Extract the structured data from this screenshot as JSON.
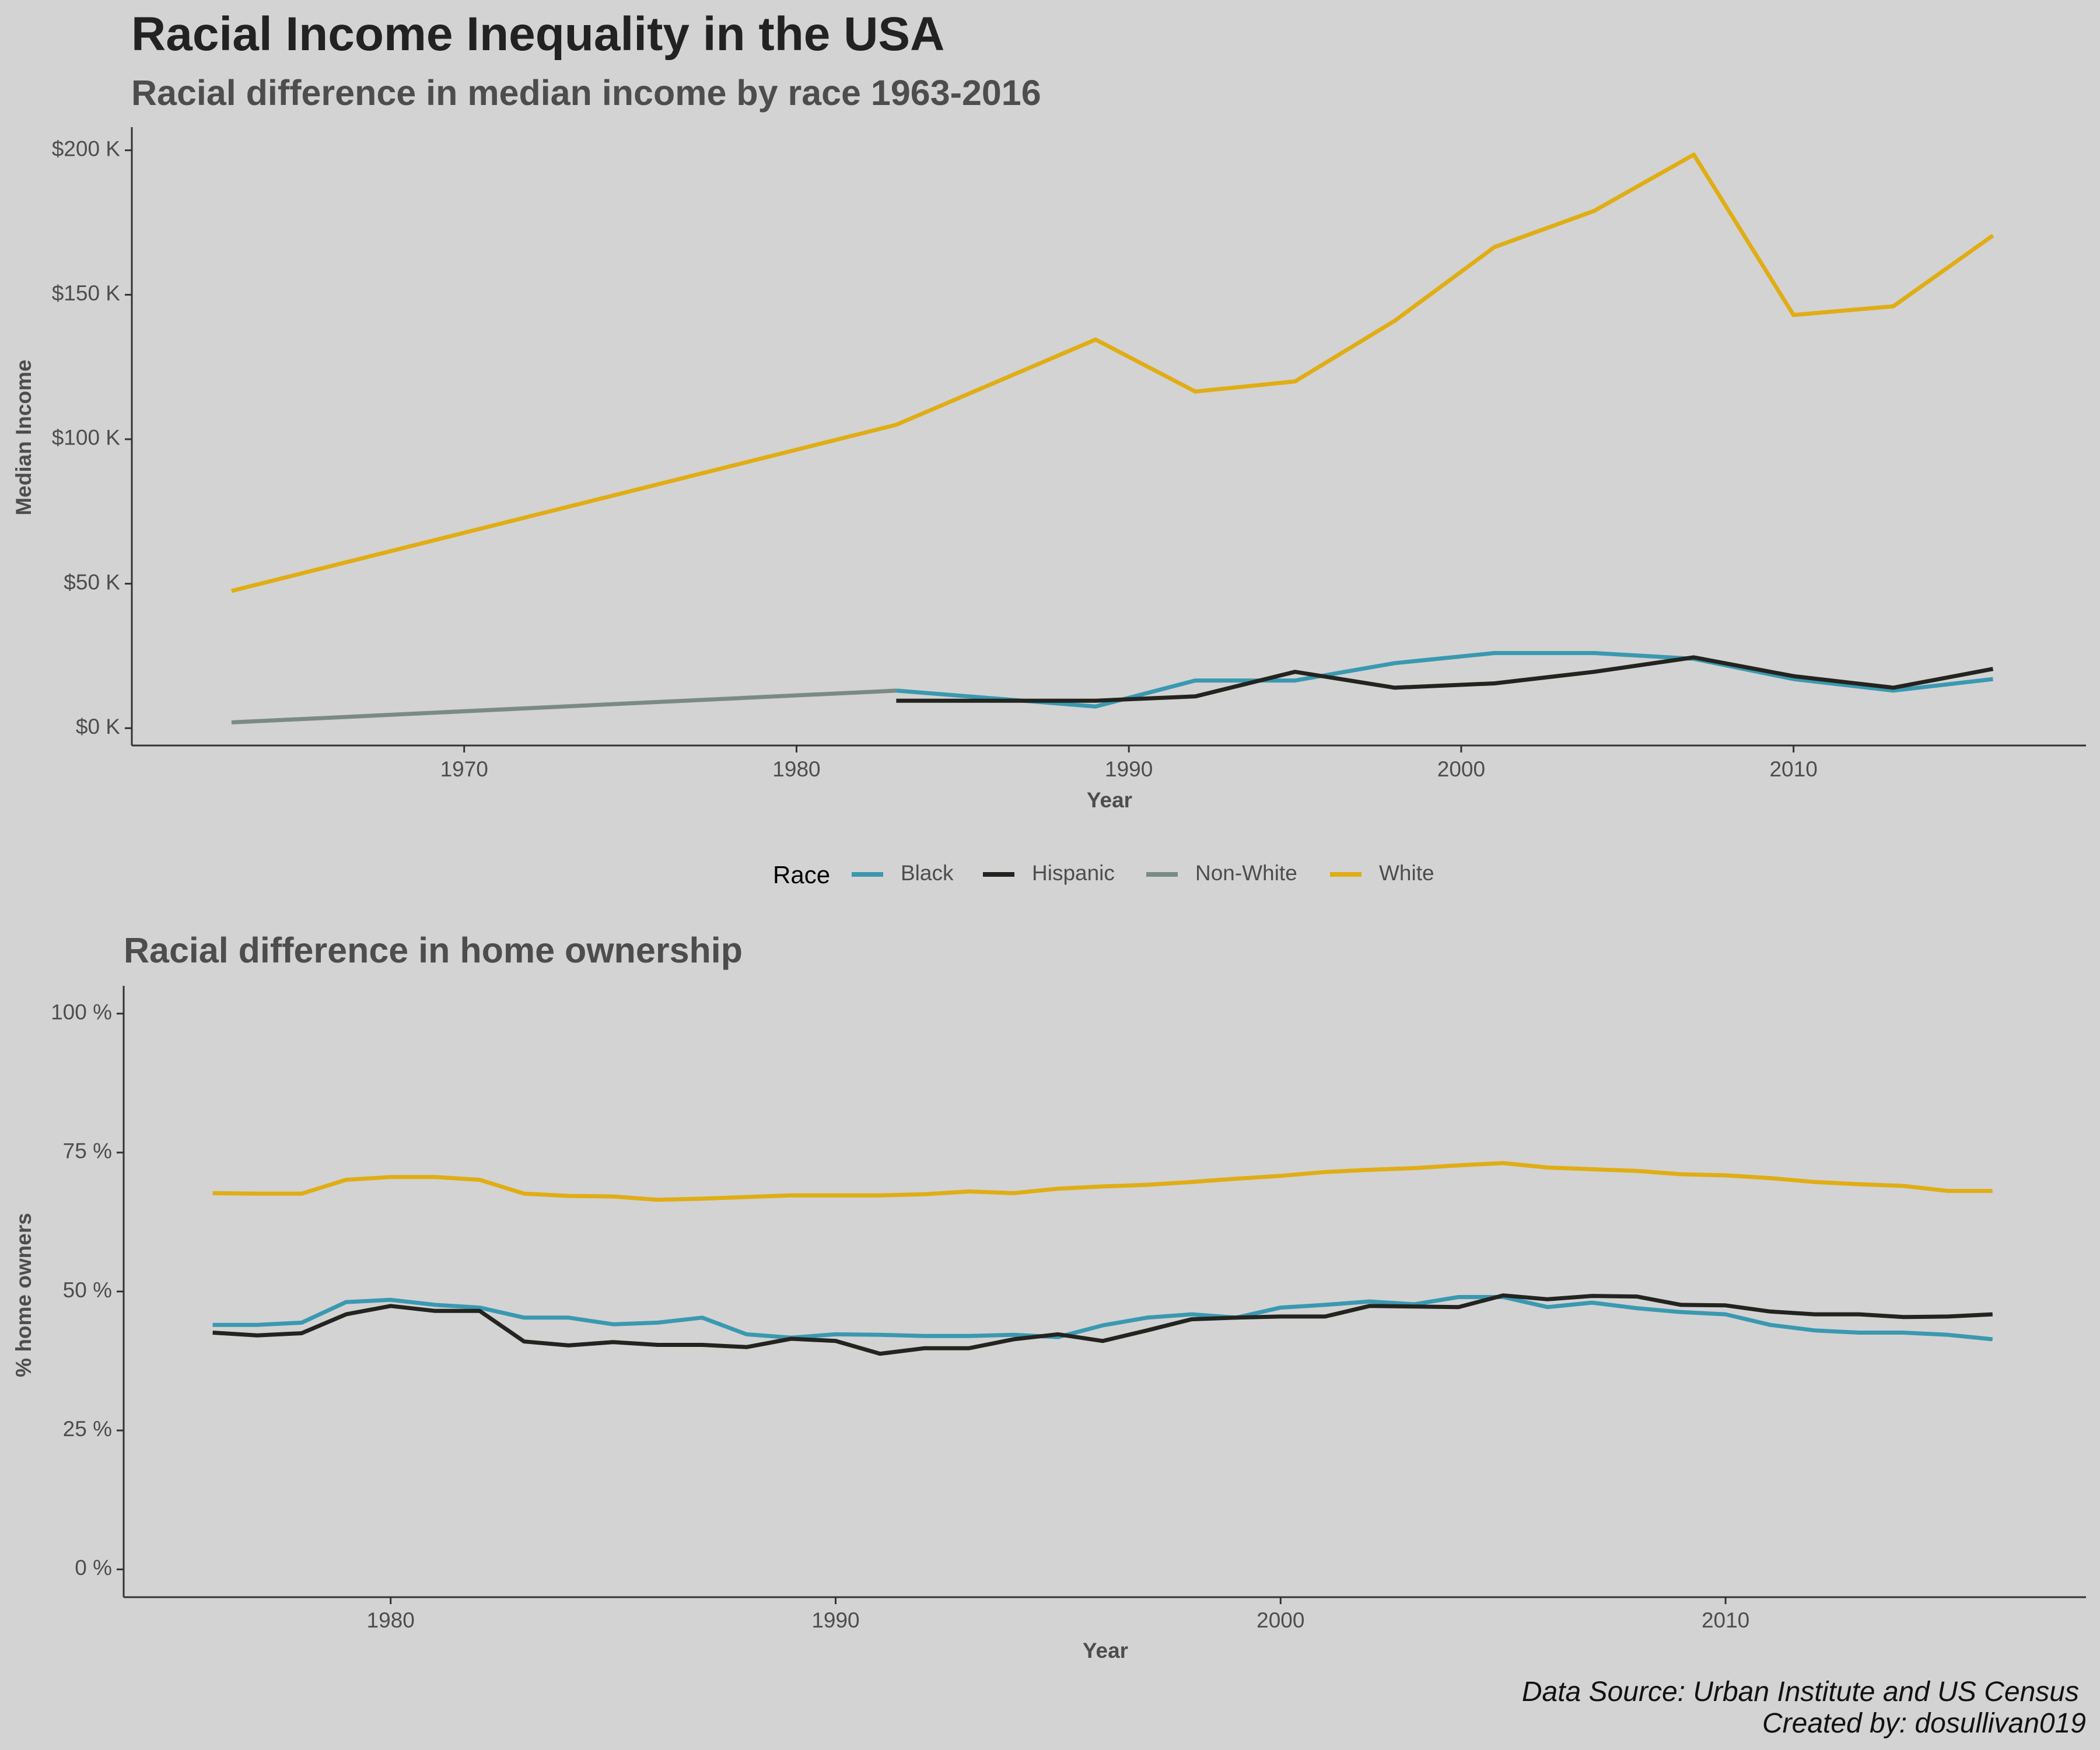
{
  "title": "Racial Income Inequality in the USA",
  "colors": {
    "Black": "#3a99b0",
    "Hispanic": "#23241f",
    "Non-White": "#7a8b87",
    "White": "#e0ad14",
    "background": "#d3d3d3",
    "axis": "#333333"
  },
  "legend": {
    "title": "Race",
    "items": [
      "Black",
      "Hispanic",
      "Non-White",
      "White"
    ]
  },
  "caption": {
    "line1": "Data Source: Urban Institute and US Census",
    "line2": "Created by: dosullivan019"
  },
  "chart_data": [
    {
      "type": "line",
      "title": "Racial difference in median income by race 1963-2016",
      "xlabel": "Year",
      "ylabel": "Median Income",
      "xlim": [
        1960,
        2018.8
      ],
      "ylim": [
        -6000,
        208000
      ],
      "x_ticks": [
        1970,
        1980,
        1990,
        2000,
        2010
      ],
      "y_ticks": [
        {
          "value": 0,
          "label": "$0 K"
        },
        {
          "value": 50000,
          "label": "$50 K"
        },
        {
          "value": 100000,
          "label": "$100 K"
        },
        {
          "value": 150000,
          "label": "$150 K"
        },
        {
          "value": 200000,
          "label": "$200 K"
        }
      ],
      "grid": false,
      "series": [
        {
          "name": "White",
          "x": [
            1963,
            1983,
            1989,
            1992,
            1995,
            1998,
            2001,
            2004,
            2007,
            2010,
            2013,
            2016
          ],
          "y": [
            47500,
            105000,
            134500,
            116500,
            120000,
            141000,
            166500,
            179000,
            198500,
            143000,
            146000,
            170500
          ]
        },
        {
          "name": "Black",
          "x": [
            1983,
            1989,
            1992,
            1995,
            1998,
            2001,
            2004,
            2007,
            2010,
            2013,
            2016
          ],
          "y": [
            13000,
            7500,
            16500,
            16500,
            22500,
            26000,
            26000,
            24000,
            17000,
            13000,
            17000
          ]
        },
        {
          "name": "Hispanic",
          "x": [
            1983,
            1989,
            1992,
            1995,
            1998,
            2001,
            2004,
            2007,
            2010,
            2013,
            2016
          ],
          "y": [
            9500,
            9500,
            11000,
            19500,
            14000,
            15500,
            19500,
            24500,
            18000,
            14000,
            20500
          ]
        },
        {
          "name": "Non-White",
          "x": [
            1963,
            1983
          ],
          "y": [
            2000,
            13000
          ]
        }
      ]
    },
    {
      "type": "line",
      "title": "Racial difference in home ownership",
      "xlabel": "Year",
      "ylabel": "% home owners",
      "xlim": [
        1974,
        2018.1
      ],
      "ylim": [
        -5,
        105
      ],
      "x_ticks": [
        1980,
        1990,
        2000,
        2010
      ],
      "y_ticks": [
        {
          "value": 0,
          "label": "0 %"
        },
        {
          "value": 25,
          "label": "25 %"
        },
        {
          "value": 50,
          "label": "50 %"
        },
        {
          "value": 75,
          "label": "75 %"
        },
        {
          "value": 100,
          "label": "100 %"
        }
      ],
      "grid": false,
      "series": [
        {
          "name": "White",
          "x": [
            1976,
            1977,
            1978,
            1979,
            1980,
            1981,
            1982,
            1983,
            1984,
            1985,
            1986,
            1987,
            1988,
            1989,
            1990,
            1991,
            1992,
            1993,
            1994,
            1995,
            1996,
            1997,
            1998,
            1999,
            2000,
            2001,
            2002,
            2003,
            2004,
            2005,
            2006,
            2007,
            2008,
            2009,
            2010,
            2011,
            2012,
            2013,
            2014,
            2015,
            2016
          ],
          "y": [
            67.7,
            67.6,
            67.6,
            70.1,
            70.6,
            70.6,
            70.1,
            67.6,
            67.2,
            67.1,
            66.5,
            66.7,
            67.0,
            67.3,
            67.3,
            67.3,
            67.5,
            68.0,
            67.7,
            68.5,
            68.9,
            69.2,
            69.7,
            70.3,
            70.8,
            71.5,
            71.9,
            72.2,
            72.7,
            73.1,
            72.3,
            72.0,
            71.7,
            71.1,
            70.9,
            70.4,
            69.7,
            69.3,
            69.0,
            68.1,
            68.1
          ]
        },
        {
          "name": "Black",
          "x": [
            1976,
            1977,
            1978,
            1979,
            1980,
            1981,
            1982,
            1983,
            1984,
            1985,
            1986,
            1987,
            1988,
            1989,
            1990,
            1991,
            1992,
            1993,
            1994,
            1995,
            1996,
            1997,
            1998,
            1999,
            2000,
            2001,
            2002,
            2003,
            2004,
            2005,
            2006,
            2007,
            2008,
            2009,
            2010,
            2011,
            2012,
            2013,
            2014,
            2015,
            2016
          ],
          "y": [
            44.0,
            44.0,
            44.4,
            48.1,
            48.5,
            47.6,
            47.1,
            45.3,
            45.3,
            44.1,
            44.4,
            45.3,
            42.3,
            41.7,
            42.3,
            42.2,
            42.0,
            42.0,
            42.2,
            41.8,
            43.9,
            45.3,
            45.9,
            45.3,
            47.1,
            47.6,
            48.2,
            47.7,
            49.0,
            49.0,
            47.2,
            48.0,
            47.0,
            46.3,
            45.9,
            44.0,
            43.0,
            42.6,
            42.6,
            42.2,
            41.4
          ]
        },
        {
          "name": "Hispanic",
          "x": [
            1976,
            1977,
            1978,
            1979,
            1980,
            1981,
            1982,
            1983,
            1984,
            1985,
            1986,
            1987,
            1988,
            1989,
            1990,
            1991,
            1992,
            1993,
            1994,
            1995,
            1996,
            1997,
            1998,
            1999,
            2000,
            2001,
            2002,
            2003,
            2004,
            2005,
            2006,
            2007,
            2008,
            2009,
            2010,
            2011,
            2012,
            2013,
            2014,
            2015,
            2016
          ],
          "y": [
            42.6,
            42.1,
            42.5,
            45.9,
            47.4,
            46.5,
            46.5,
            41.0,
            40.3,
            40.9,
            40.4,
            40.4,
            40.0,
            41.5,
            41.1,
            38.8,
            39.8,
            39.8,
            41.4,
            42.3,
            41.1,
            43.0,
            45.0,
            45.3,
            45.5,
            45.5,
            47.4,
            47.3,
            47.2,
            49.3,
            48.6,
            49.2,
            49.1,
            47.6,
            47.5,
            46.4,
            45.9,
            45.9,
            45.4,
            45.5,
            45.9
          ]
        }
      ]
    }
  ]
}
